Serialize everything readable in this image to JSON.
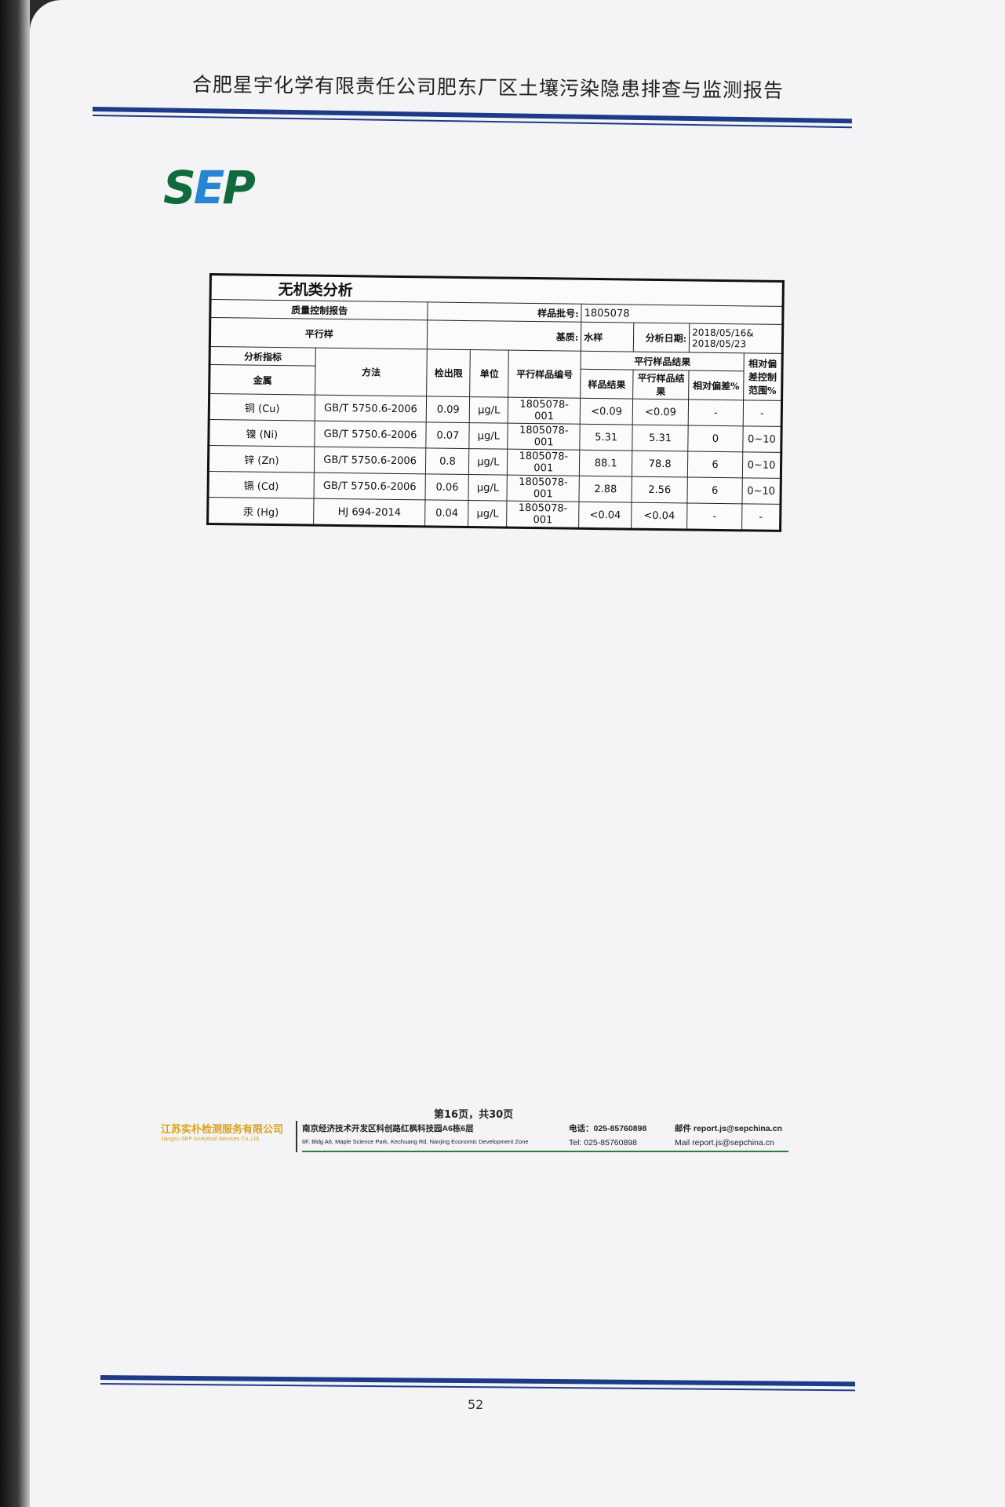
{
  "header": {
    "title": "合肥星宇化学有限责任公司肥东厂区土壤污染隐患排查与监测报告"
  },
  "logo": {
    "text": "SEP"
  },
  "table": {
    "title": "无机类分析",
    "qc_report": "质量控制报告",
    "batch_label": "样品批号:",
    "batch_value": "1805078",
    "sample_type": "平行样",
    "matrix_label": "基质:",
    "matrix_value": "水样",
    "date_label": "分析日期:",
    "date_value": "2018/05/16& 2018/05/23",
    "headers": {
      "indicator": "分析指标",
      "method": "方法",
      "lod": "检出限",
      "unit": "单位",
      "parallel_id": "平行样品编号",
      "results_group": "平行样品结果",
      "sample_result": "样品结果",
      "parallel_result": "平行样品结果",
      "rpd": "相对偏差%",
      "rpd_range": "相对偏差控制范围%"
    },
    "category": "金属",
    "rows": [
      {
        "indicator": "铜 (Cu)",
        "method": "GB/T 5750.6-2006",
        "lod": "0.09",
        "unit": "μg/L",
        "id": "1805078-001",
        "sample": "<0.09",
        "parallel": "<0.09",
        "rpd": "-",
        "range": "-"
      },
      {
        "indicator": "镍 (Ni)",
        "method": "GB/T 5750.6-2006",
        "lod": "0.07",
        "unit": "μg/L",
        "id": "1805078-001",
        "sample": "5.31",
        "parallel": "5.31",
        "rpd": "0",
        "range": "0~10"
      },
      {
        "indicator": "锌 (Zn)",
        "method": "GB/T 5750.6-2006",
        "lod": "0.8",
        "unit": "μg/L",
        "id": "1805078-001",
        "sample": "88.1",
        "parallel": "78.8",
        "rpd": "6",
        "range": "0~10"
      },
      {
        "indicator": "镉 (Cd)",
        "method": "GB/T 5750.6-2006",
        "lod": "0.06",
        "unit": "μg/L",
        "id": "1805078-001",
        "sample": "2.88",
        "parallel": "2.56",
        "rpd": "6",
        "range": "0~10"
      },
      {
        "indicator": "汞 (Hg)",
        "method": "HJ 694-2014",
        "lod": "0.04",
        "unit": "μg/L",
        "id": "1805078-001",
        "sample": "<0.04",
        "parallel": "<0.04",
        "rpd": "-",
        "range": "-"
      }
    ]
  },
  "footer": {
    "page_info": "第16页，共30页",
    "company_cn": "江苏实朴检测服务有限公司",
    "company_en": "Jiangsu SEP Analytical Services Co.,Ltd.",
    "address_cn": "南京经济技术开发区科创路红枫科技园A6栋6层",
    "address_en": "6F, Bldg A6, Maple Science Park, Kechuang Rd, Nanjing Economic Development Zone",
    "tel_cn": "电话：025-85760898",
    "tel_en": "Tel: 025-85760898",
    "mail_cn": "邮件 report.js@sepchina.cn",
    "mail_en": "Mail report.js@sepchina.cn"
  },
  "page_number": "52",
  "colors": {
    "rule_blue": "#1e3b8a",
    "logo_green": "#0f6b3c",
    "company_gold": "#d8a316"
  }
}
